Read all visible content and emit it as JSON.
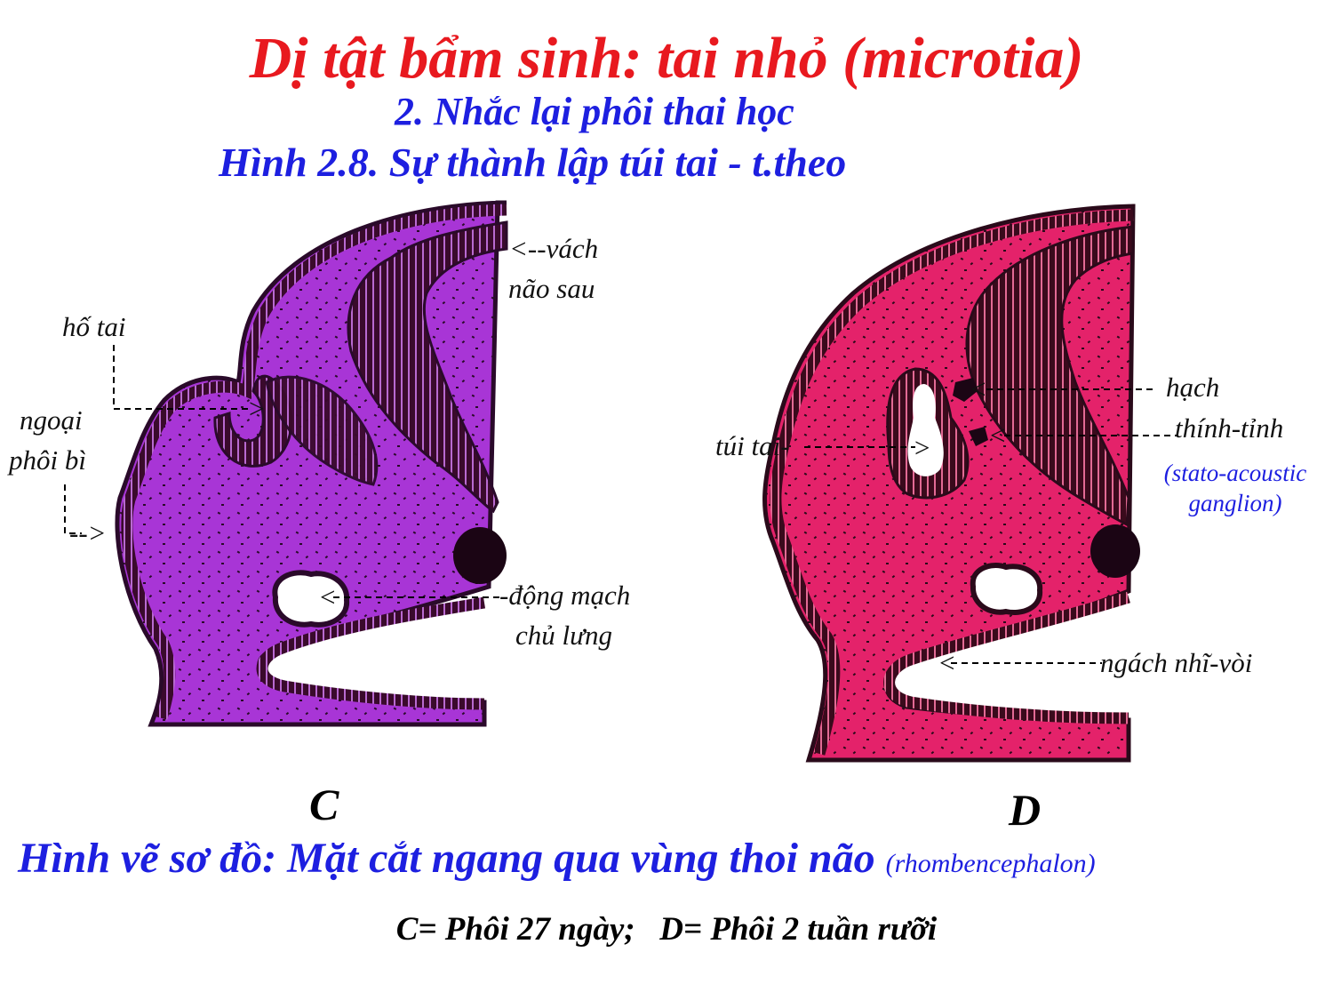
{
  "title": "Dị tật bẩm sinh: tai nhỏ (microtia)",
  "subtitle": "2. Nhắc lại phôi thai học",
  "figure_title": "Hình 2.8.  Sự thành lập túi tai - t.theo",
  "colors": {
    "title": "#e8191f",
    "blue_text": "#1d1fe0",
    "panel_c_tissue": "#a835d6",
    "panel_d_tissue": "#e4226a",
    "neural_tube": "#3a0a2c"
  },
  "panel_c": {
    "letter": "C",
    "labels": {
      "vach_1": "<--vách",
      "vach_2": "não sau",
      "ho_tai": "hố tai",
      "ngoai_1": "ngoại",
      "ngoai_2": "phôi bì",
      "dong_mach_1": "-động mạch",
      "dong_mach_2": "chủ lưng",
      "ngoai_arrow": "-->",
      "ho_arrow": ">",
      "dm_arrow": "<"
    }
  },
  "panel_d": {
    "letter": "D",
    "labels": {
      "hach": "hạch",
      "thinh_tinh": "thính-tỉnh",
      "stato_1": "(stato-acoustic",
      "stato_2": "ganglion)",
      "tui_tai": "túi tai-",
      "ngach": "ngách nhĩ-vòi",
      "hach_arrow": "<",
      "thinh_arrow": "<",
      "tui_arrow": ">",
      "ngach_arrow": "<"
    }
  },
  "caption": {
    "main": "Hình vẽ sơ đồ: Mặt cắt ngang qua vùng thoi não ",
    "paren": "(rhombencephalon)"
  },
  "bottom_note": "C= Phôi 27 ngày;   D= Phôi 2 tuần rưỡi"
}
